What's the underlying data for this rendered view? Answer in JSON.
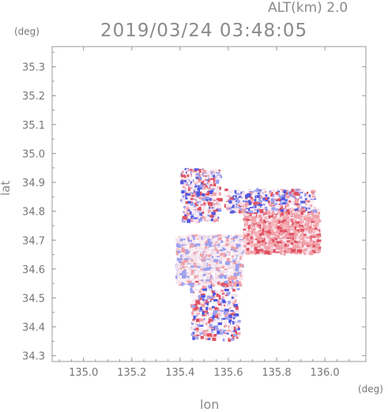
{
  "header": {
    "altitude": "ALT(km) 2.0",
    "timestamp": "2019/03/24 03:48:05"
  },
  "chart_data": {
    "type": "heatmap",
    "title": "2019/03/24 03:48:05",
    "subtitle": "ALT(km) 2.0",
    "xlabel": "lon",
    "ylabel": "lat",
    "x_unit": "(deg)",
    "y_unit": "(deg)",
    "xlim": [
      134.87,
      136.17
    ],
    "ylim": [
      34.28,
      35.37
    ],
    "x_ticks": [
      "135.0",
      "135.2",
      "135.4",
      "135.6",
      "135.8",
      "136.0"
    ],
    "y_ticks": [
      "34.3",
      "34.4",
      "34.5",
      "34.6",
      "34.7",
      "34.8",
      "34.9",
      "35.0",
      "35.1",
      "35.2",
      "35.3"
    ],
    "grid": false,
    "colors": {
      "positive": "#f0a0a8",
      "positive_strong": "#e05060",
      "negative": "#9ca0f0",
      "negative_strong": "#5058e0",
      "near_zero": "#f6e4ee",
      "axis": "#999999"
    },
    "regions": [
      {
        "kind": "positive",
        "lon": [
          135.66,
          135.97
        ],
        "lat": [
          34.66,
          34.81
        ]
      },
      {
        "kind": "near_zero",
        "lon": [
          135.38,
          135.65
        ],
        "lat": [
          34.55,
          34.72
        ]
      },
      {
        "kind": "mixed",
        "lon": [
          135.44,
          135.64
        ],
        "lat": [
          34.36,
          34.56
        ]
      },
      {
        "kind": "mixed",
        "lon": [
          135.58,
          135.95
        ],
        "lat": [
          34.8,
          34.88
        ]
      },
      {
        "kind": "mixed",
        "lon": [
          135.4,
          135.56
        ],
        "lat": [
          34.77,
          34.95
        ]
      }
    ]
  }
}
